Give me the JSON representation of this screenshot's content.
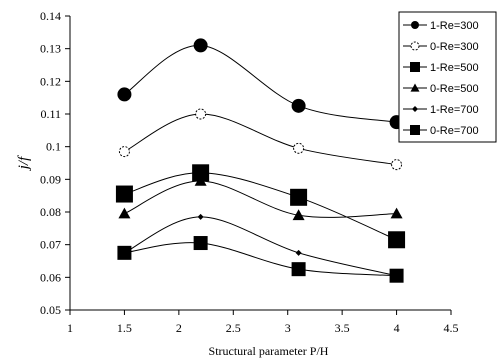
{
  "chart_data": {
    "type": "line",
    "title": "",
    "xlabel": "Structural parameter P/H",
    "ylabel": "j/f",
    "xlim": [
      1,
      4.5
    ],
    "ylim": [
      0.05,
      0.14
    ],
    "xticks": [
      1,
      1.5,
      2,
      2.5,
      3,
      3.5,
      4,
      4.5
    ],
    "xtick_labels": [
      "1",
      "1.5",
      "2",
      "2.5",
      "3",
      "3.5",
      "4",
      "4.5"
    ],
    "yticks": [
      0.05,
      0.06,
      0.07,
      0.08,
      0.09,
      0.1,
      0.11,
      0.12,
      0.13,
      0.14
    ],
    "ytick_labels": [
      "0.05",
      "0.06",
      "0.07",
      "0.08",
      "0.09",
      "0.1",
      "0.11",
      "0.12",
      "0.13",
      "0.14"
    ],
    "grid": false,
    "legend_position": "top-right",
    "x": [
      1.5,
      2.2,
      3.1,
      4
    ],
    "series": [
      {
        "name": "1-Re=300",
        "marker": "circle-filled",
        "values": [
          0.116,
          0.131,
          0.1125,
          0.1075
        ]
      },
      {
        "name": "0-Re=300",
        "marker": "circle-open",
        "values": [
          0.0985,
          0.11,
          0.0995,
          0.0945
        ]
      },
      {
        "name": "1-Re=500",
        "marker": "square",
        "values": [
          0.0855,
          0.092,
          0.0845,
          0.0715
        ]
      },
      {
        "name": "0-Re=500",
        "marker": "triangle",
        "values": [
          0.0795,
          0.0895,
          0.079,
          0.0795
        ]
      },
      {
        "name": "1-Re=700",
        "marker": "diamond",
        "values": [
          0.0675,
          0.0785,
          0.0675,
          0.0605
        ]
      },
      {
        "name": "0-Re=700",
        "marker": "square",
        "values": [
          0.0675,
          0.0705,
          0.0625,
          0.0605
        ]
      }
    ],
    "colors": {
      "line": "#000000",
      "background": "#ffffff",
      "open_marker_fill": "#ffffff"
    }
  }
}
